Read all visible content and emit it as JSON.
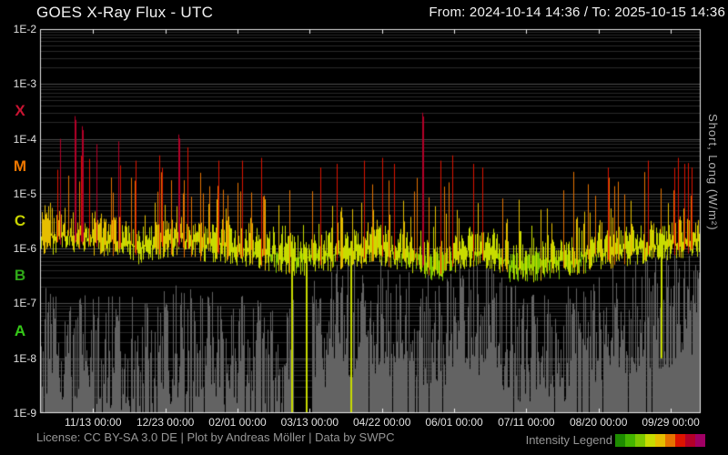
{
  "header": {
    "title": "GOES X-Ray Flux - UTC",
    "time_range": "From: 2024-10-14 14:36  /  To: 2025-10-15 14:36"
  },
  "footer": {
    "license": "License: CC BY-SA 3.0 DE | Plot by Andreas Möller | Data by SWPC"
  },
  "legend": {
    "label": "Intensity Legend",
    "colors": [
      "#1e8c00",
      "#44b400",
      "#7dc800",
      "#c8dc00",
      "#e6be00",
      "#e67300",
      "#dc1400",
      "#b40028",
      "#a00064"
    ]
  },
  "right_axis_label": "Short, Long (W/m²)",
  "chart_data": {
    "type": "area",
    "title": "GOES X-Ray Flux - UTC",
    "x_range": {
      "from": "2024-10-14 14:36",
      "to": "2025-10-15 14:36",
      "days": 366
    },
    "y_axis": {
      "scale": "log",
      "unit": "W/m²",
      "min": 1e-09,
      "max": 0.01,
      "ticks": [
        {
          "label": "1E-2",
          "exp": -2
        },
        {
          "label": "1E-3",
          "exp": -3
        },
        {
          "label": "1E-4",
          "exp": -4
        },
        {
          "label": "1E-5",
          "exp": -5
        },
        {
          "label": "1E-6",
          "exp": -6
        },
        {
          "label": "1E-7",
          "exp": -7
        },
        {
          "label": "1E-8",
          "exp": -8
        },
        {
          "label": "1E-9",
          "exp": -9
        }
      ]
    },
    "x_ticks": [
      {
        "label": "11/13 00:00",
        "day": 29.39
      },
      {
        "label": "12/23 00:00",
        "day": 69.39
      },
      {
        "label": "02/01 00:00",
        "day": 109.39
      },
      {
        "label": "03/13 00:00",
        "day": 149.39
      },
      {
        "label": "04/22 00:00",
        "day": 189.39
      },
      {
        "label": "06/01 00:00",
        "day": 229.39
      },
      {
        "label": "07/11 00:00",
        "day": 269.39
      },
      {
        "label": "08/20 00:00",
        "day": 309.39
      },
      {
        "label": "09/29 00:00",
        "day": 349.39
      }
    ],
    "flare_classes": [
      {
        "label": "X",
        "flux": 0.000316,
        "color": "#c81432"
      },
      {
        "label": "M",
        "flux": 3.16e-05,
        "color": "#ee7700"
      },
      {
        "label": "C",
        "flux": 3.16e-06,
        "color": "#c8d400"
      },
      {
        "label": "B",
        "flux": 3.16e-07,
        "color": "#2fa818"
      },
      {
        "label": "A",
        "flux": 3.16e-08,
        "color": "#35c818"
      }
    ],
    "grid": {
      "major_color": "rgba(255,255,255,0.30)",
      "minor_color": "rgba(255,255,255,0.16)"
    },
    "intensity_palette": [
      {
        "max_exp": -7.2,
        "color": "#1e8c00"
      },
      {
        "max_exp": -6.6,
        "color": "#44b400"
      },
      {
        "max_exp": -6.05,
        "color": "#7dc800"
      },
      {
        "max_exp": -5.55,
        "color": "#c8dc00"
      },
      {
        "max_exp": -5.1,
        "color": "#e6be00"
      },
      {
        "max_exp": -4.6,
        "color": "#e67300"
      },
      {
        "max_exp": -4.1,
        "color": "#dc1400"
      },
      {
        "max_exp": -3.3,
        "color": "#b40028"
      },
      {
        "max_exp": 0,
        "color": "#a00064"
      }
    ],
    "series": [
      {
        "name": "Long",
        "render": "columns colored by intensity palette"
      },
      {
        "name": "Short",
        "render": "gray columns",
        "color": "#636363"
      }
    ],
    "envelope": {
      "days": [
        0,
        10,
        20,
        30,
        43,
        55,
        66,
        77,
        90,
        105,
        120,
        135,
        150,
        163,
        175,
        190,
        205,
        212,
        220,
        235,
        250,
        262,
        275,
        290,
        305,
        320,
        335,
        350,
        360,
        366
      ],
      "long_baseline": [
        2.5e-06,
        2.6e-06,
        2.8e-06,
        2.4e-06,
        2.2e-06,
        1.6e-06,
        2e-06,
        2.4e-06,
        1.9e-06,
        1.7e-06,
        1.4e-06,
        1.1e-06,
        1e-06,
        1.3e-06,
        1.4e-06,
        1.6e-06,
        1.2e-06,
        1e-06,
        7e-07,
        1.4e-06,
        1.3e-06,
        7e-07,
        8e-07,
        9e-07,
        1.2e-06,
        1.5e-06,
        1.7e-06,
        2e-06,
        2.2e-06,
        2.1e-06
      ],
      "long_peak": [
        2.5e-05,
        6e-05,
        8e-05,
        5e-05,
        5.5e-05,
        1.5e-05,
        4e-05,
        7e-05,
        3e-05,
        2e-05,
        2.5e-05,
        1.2e-05,
        1.5e-05,
        2e-05,
        2.5e-05,
        3.5e-05,
        1.5e-05,
        8e-05,
        2.5e-05,
        3.5e-05,
        2.5e-05,
        8e-06,
        8e-06,
        1.5e-05,
        2e-05,
        2.5e-05,
        3e-05,
        4e-05,
        4.5e-05,
        3e-05
      ],
      "short_top": [
        6e-08,
        5e-08,
        4e-08,
        3e-08,
        3e-08,
        3e-08,
        4e-08,
        5e-08,
        4e-08,
        4e-08,
        3e-08,
        2e-08,
        8e-08,
        1.2e-07,
        1.5e-07,
        1.5e-07,
        1.2e-07,
        1e-07,
        1e-07,
        1.2e-07,
        1e-07,
        5e-08,
        4e-08,
        5e-08,
        8e-08,
        1.2e-07,
        1.5e-07,
        1.8e-07,
        1.8e-07,
        1.5e-07
      ]
    },
    "major_flares": [
      {
        "day": 11.1,
        "flux": 0.0001
      },
      {
        "day": 19.2,
        "flux": 0.00026
      },
      {
        "day": 23.2,
        "flux": 0.00017
      },
      {
        "day": 31.3,
        "flux": 8e-05
      },
      {
        "day": 43.4,
        "flux": 9e-05
      },
      {
        "day": 53.0,
        "flux": 4e-05
      },
      {
        "day": 66.0,
        "flux": 5e-05
      },
      {
        "day": 76.6,
        "flux": 0.00012
      },
      {
        "day": 81.7,
        "flux": 7e-05
      },
      {
        "day": 98.8,
        "flux": 4e-05
      },
      {
        "day": 111.9,
        "flux": 4e-05
      },
      {
        "day": 122.5,
        "flux": 4.5e-05
      },
      {
        "day": 155.3,
        "flux": 3e-05
      },
      {
        "day": 164.3,
        "flux": 3.5e-05
      },
      {
        "day": 179.5,
        "flux": 4e-05
      },
      {
        "day": 189.6,
        "flux": 4.5e-05
      },
      {
        "day": 196.1,
        "flux": 3.5e-05
      },
      {
        "day": 211.7,
        "flux": 0.0003
      },
      {
        "day": 221.8,
        "flux": 4e-05
      },
      {
        "day": 228.4,
        "flux": 5e-05
      },
      {
        "day": 240.0,
        "flux": 3.5e-05
      },
      {
        "day": 245.0,
        "flux": 3e-05
      },
      {
        "day": 295.4,
        "flux": 2.5e-05
      },
      {
        "day": 314.6,
        "flux": 3e-05
      },
      {
        "day": 336.8,
        "flux": 4e-05
      },
      {
        "day": 353.4,
        "flux": 4.5e-05
      },
      {
        "day": 356.9,
        "flux": 3.5e-05
      },
      {
        "day": 361.0,
        "flux": 3e-05
      }
    ],
    "dropouts": [
      {
        "day": 139.1,
        "to_flux": 1e-09
      },
      {
        "day": 147.2,
        "to_flux": 1e-09
      },
      {
        "day": 171.9,
        "to_flux": 1e-09
      },
      {
        "day": 343.8,
        "to_flux": 1e-08
      }
    ],
    "gray_gaps": [
      {
        "start_day": 140.2,
        "end_day": 150.7
      }
    ]
  }
}
